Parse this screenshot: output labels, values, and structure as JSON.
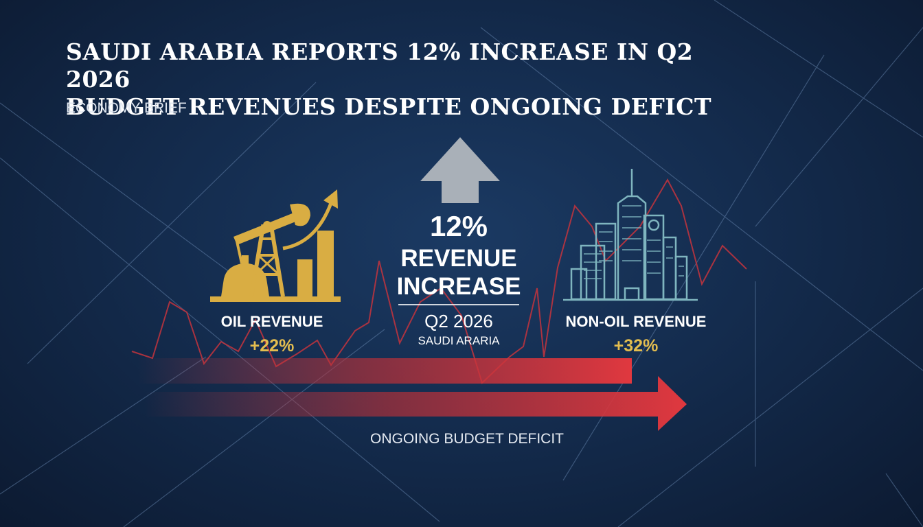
{
  "headline": {
    "line1": "SAUDI ARABIA REPORTS 12% INCREASE IN Q2 2026",
    "line2": "BUDGET REVENUES DESPITE ONGOING DEFICT"
  },
  "kicker": "ECONOMY BRIEF",
  "center": {
    "percent": "12%",
    "label1": "REVENUE",
    "label2": "INCREASE",
    "period": "Q2 2026",
    "region": "SAUDI ARARIA"
  },
  "oil": {
    "label": "OIL REVENUE",
    "change": "+22%"
  },
  "non_oil": {
    "label": "NON-OIL REVENUE",
    "change": "+32%"
  },
  "deficit_label": "ONGOING BUDGET DEFICIT",
  "colors": {
    "background": "#142c4e",
    "gold": "#e3bd4f",
    "teal": "#7fb5bf",
    "red": "#d33a3f",
    "arrow_gray": "#a9b0b8"
  },
  "icons": [
    "pumpjack-icon",
    "rising-arrow-icon",
    "city-skyline-icon",
    "up-arrow-icon",
    "right-arrow-icon"
  ]
}
